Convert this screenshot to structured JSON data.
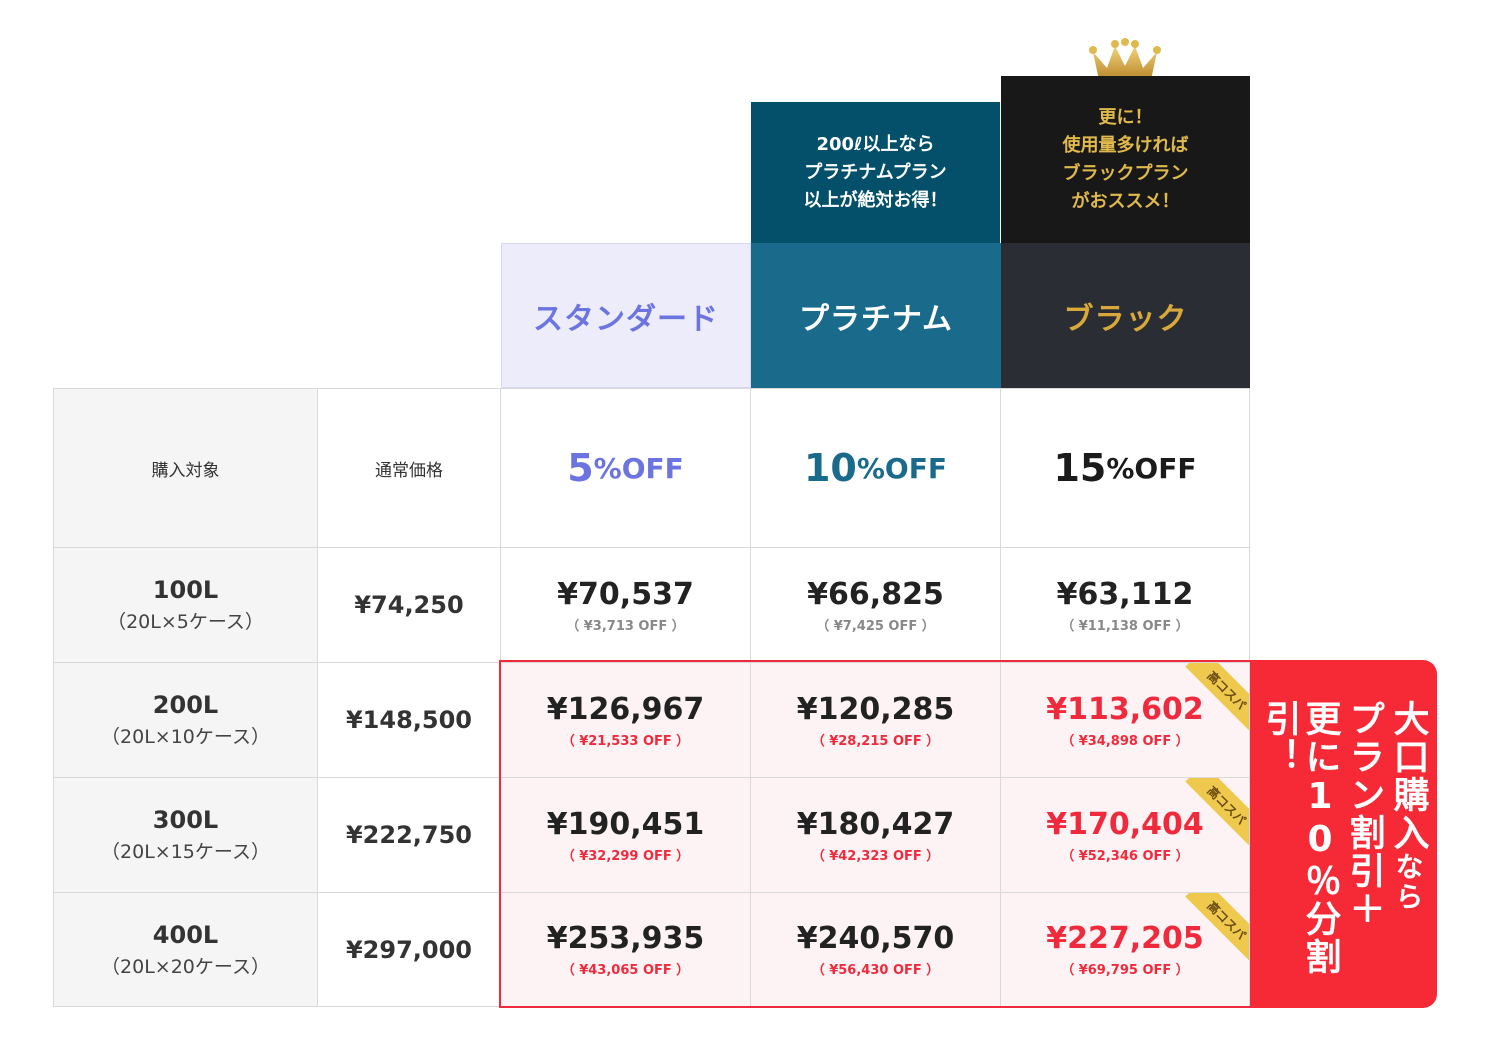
{
  "promos": {
    "platinum": [
      "200ℓ以上なら",
      "プラチナムプラン",
      "以上が絶対お得！"
    ],
    "black": [
      "更に！",
      "使用量多ければ",
      "ブラックプラン",
      "がおススメ！"
    ]
  },
  "plans": {
    "standard": "スタンダード",
    "platinum": "プラチナム",
    "black": "ブラック"
  },
  "header": {
    "target": "購入対象",
    "regular": "通常価格",
    "discounts": {
      "standard": {
        "num": "5",
        "unit": "%OFF"
      },
      "platinum": {
        "num": "10",
        "unit": "%OFF"
      },
      "black": {
        "num": "15",
        "unit": "%OFF"
      }
    }
  },
  "rows": [
    {
      "volume": "100L",
      "sub": "（20L×5ケース）",
      "regular": "¥74,250",
      "standard": {
        "price": "¥70,537",
        "off": "（ ¥3,713 OFF ）"
      },
      "platinum": {
        "price": "¥66,825",
        "off": "（ ¥7,425 OFF ）"
      },
      "black": {
        "price": "¥63,112",
        "off": "（ ¥11,138 OFF ）"
      }
    },
    {
      "volume": "200L",
      "sub": "（20L×10ケース）",
      "regular": "¥148,500",
      "standard": {
        "price": "¥126,967",
        "off": "（ ¥21,533 OFF ）"
      },
      "platinum": {
        "price": "¥120,285",
        "off": "（ ¥28,215 OFF ）"
      },
      "black": {
        "price": "¥113,602",
        "off": "（ ¥34,898 OFF ）"
      }
    },
    {
      "volume": "300L",
      "sub": "（20L×15ケース）",
      "regular": "¥222,750",
      "standard": {
        "price": "¥190,451",
        "off": "（ ¥32,299 OFF ）"
      },
      "platinum": {
        "price": "¥180,427",
        "off": "（ ¥42,323 OFF ）"
      },
      "black": {
        "price": "¥170,404",
        "off": "（ ¥52,346 OFF ）"
      }
    },
    {
      "volume": "400L",
      "sub": "（20L×20ケース）",
      "regular": "¥297,000",
      "standard": {
        "price": "¥253,935",
        "off": "（ ¥43,065 OFF ）"
      },
      "platinum": {
        "price": "¥240,570",
        "off": "（ ¥56,430 OFF ）"
      },
      "black": {
        "price": "¥227,205",
        "off": "（ ¥69,795 OFF ）"
      }
    }
  ],
  "ribbon": "高コスパ",
  "banner": {
    "col1": "大口購入",
    "col1_small": "なら",
    "col2": "プラン割引＋",
    "col3": "更に10％分割引！"
  },
  "colors": {
    "red": "#ef2a3c",
    "platinum": "#1a6a8b",
    "standard": "#6b74e0",
    "gold": "#d8a93a"
  }
}
